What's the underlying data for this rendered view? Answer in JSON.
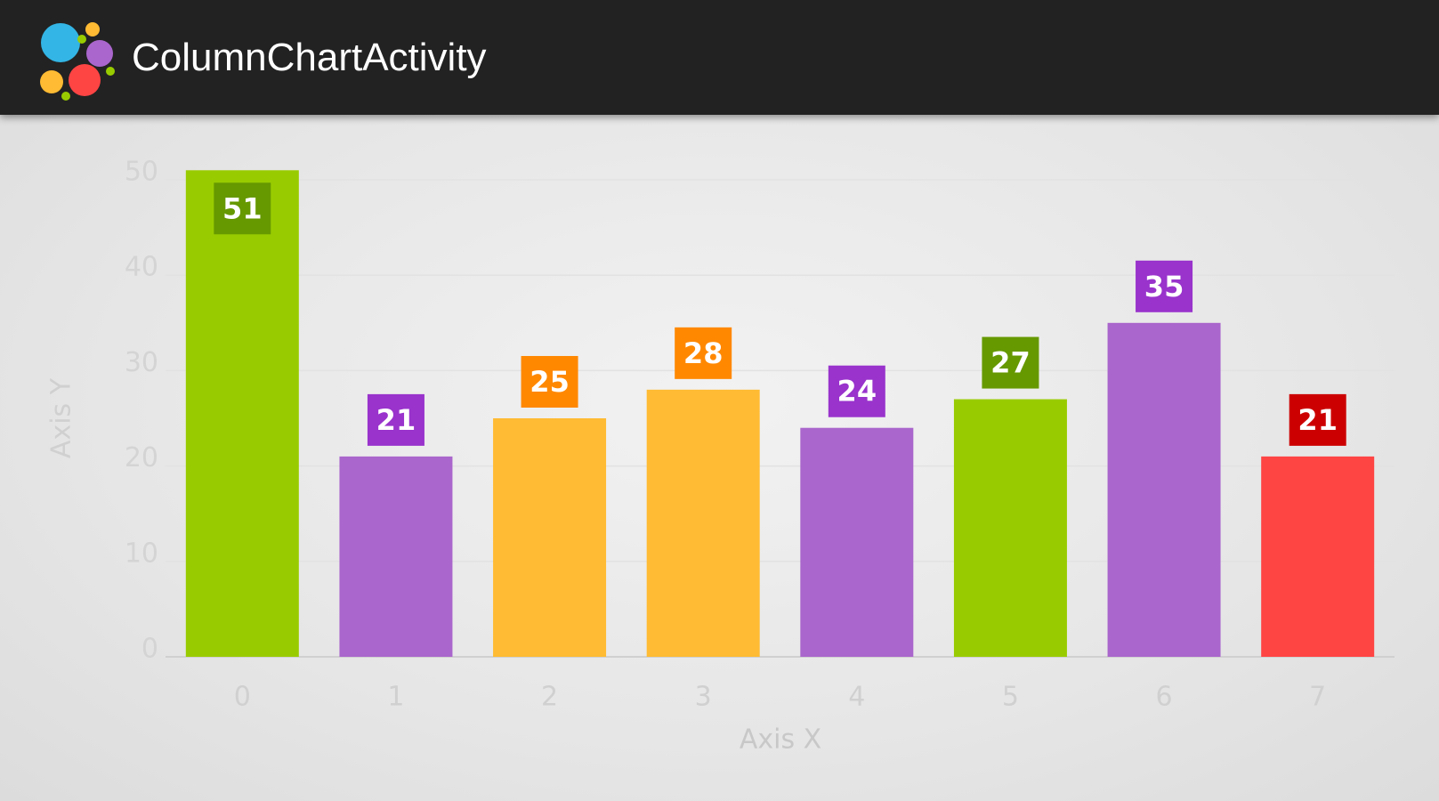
{
  "app_bar": {
    "title": "ColumnChartActivity"
  },
  "chart_data": {
    "type": "bar",
    "categories": [
      "0",
      "1",
      "2",
      "3",
      "4",
      "5",
      "6",
      "7"
    ],
    "values": [
      51,
      21,
      25,
      28,
      24,
      27,
      35,
      21
    ],
    "colors": [
      "#99cc00",
      "#aa66cc",
      "#ffbb33",
      "#ffbb33",
      "#aa66cc",
      "#99cc00",
      "#aa66cc",
      "#ff4444"
    ],
    "label_colors": [
      "#669900",
      "#9933cc",
      "#ff8800",
      "#ff8800",
      "#9933cc",
      "#669900",
      "#9933cc",
      "#cc0000"
    ],
    "ylim": [
      0,
      50
    ],
    "yticks": [
      0,
      10,
      20,
      30,
      40,
      50
    ],
    "grid": true,
    "x_label": "Axis X",
    "y_label": "Axis Y"
  }
}
